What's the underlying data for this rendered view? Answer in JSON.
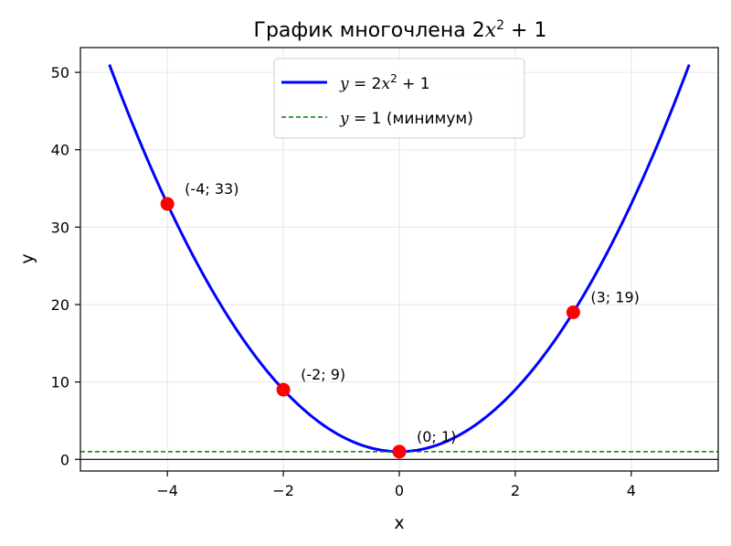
{
  "chart_data": {
    "type": "line",
    "title": "График многочлена 2x² + 1",
    "title_parts": {
      "prefix": "График многочлена 2",
      "var": "x",
      "sup": "2",
      "suffix": " + 1"
    },
    "xlabel": "x",
    "ylabel": "y",
    "xlim": [
      -5.5,
      5.5
    ],
    "ylim": [
      -1.5,
      53.2
    ],
    "xticks": [
      -4,
      -2,
      0,
      2,
      4
    ],
    "xtick_labels": [
      "−4",
      "−2",
      "0",
      "2",
      "4"
    ],
    "yticks": [
      0,
      10,
      20,
      30,
      40,
      50
    ],
    "ytick_labels": [
      "0",
      "10",
      "20",
      "30",
      "40",
      "50"
    ],
    "grid": true,
    "legend_position": "top-center",
    "series": [
      {
        "name": "y = 2x² + 1",
        "legend": {
          "var": "y",
          "eq": " = 2",
          "x": "x",
          "sup": "2",
          "tail": " + 1"
        },
        "function": {
          "a": 2,
          "b": 0,
          "c": 1
        },
        "x_range": [
          -5,
          5
        ],
        "color": "#0000ff",
        "style": "solid"
      },
      {
        "name": "y = 1 (минимум)",
        "legend": {
          "var": "y",
          "eq": " = 1 (минимум)"
        },
        "y": 1,
        "color": "#008000",
        "style": "dashed"
      }
    ],
    "reference_line": {
      "y": 0,
      "color": "#000000"
    },
    "points": [
      {
        "x": -4,
        "y": 33,
        "label": "(-4; 33)"
      },
      {
        "x": -2,
        "y": 9,
        "label": "(-2; 9)"
      },
      {
        "x": 0,
        "y": 1,
        "label": "(0; 1)"
      },
      {
        "x": 3,
        "y": 19,
        "label": "(3; 19)"
      }
    ],
    "point_color": "#ff0000"
  }
}
